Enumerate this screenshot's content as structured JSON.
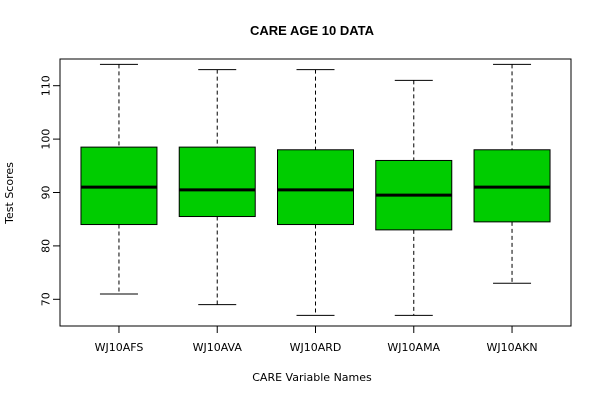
{
  "chart_data": {
    "type": "box",
    "title": "CARE AGE 10 DATA",
    "xlabel": "CARE Variable Names",
    "ylabel": "Test Scores",
    "ylim": [
      65,
      115
    ],
    "yticks": [
      70,
      80,
      90,
      100,
      110
    ],
    "box_color": "#00cc00",
    "categories": [
      "WJ10AFS",
      "WJ10AVA",
      "WJ10ARD",
      "WJ10AMA",
      "WJ10AKN"
    ],
    "boxes": [
      {
        "name": "WJ10AFS",
        "min": 71,
        "q1": 84,
        "median": 91,
        "q3": 98.5,
        "max": 114
      },
      {
        "name": "WJ10AVA",
        "min": 69,
        "q1": 85.5,
        "median": 90.5,
        "q3": 98.5,
        "max": 113
      },
      {
        "name": "WJ10ARD",
        "min": 67,
        "q1": 84,
        "median": 90.5,
        "q3": 98,
        "max": 113
      },
      {
        "name": "WJ10AMA",
        "min": 67,
        "q1": 83,
        "median": 89.5,
        "q3": 96,
        "max": 111
      },
      {
        "name": "WJ10AKN",
        "min": 73,
        "q1": 84.5,
        "median": 91,
        "q3": 98,
        "max": 114
      }
    ]
  }
}
